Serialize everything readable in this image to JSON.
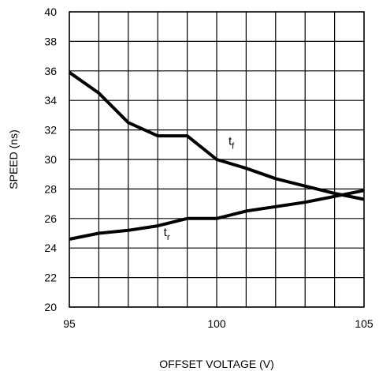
{
  "chart_data": {
    "type": "line",
    "title": "",
    "xlabel": "OFFSET VOLTAGE (V)",
    "ylabel": "SPEED (ns)",
    "xlim": [
      95,
      105
    ],
    "ylim": [
      20,
      40
    ],
    "x_ticks": [
      95,
      100,
      105
    ],
    "y_ticks": [
      20,
      22,
      24,
      26,
      28,
      30,
      32,
      34,
      36,
      38,
      40
    ],
    "x_grid_step": 1,
    "grid": true,
    "series": [
      {
        "name": "tf",
        "label_main": "t",
        "label_sub": "f",
        "x": [
          95,
          96,
          97,
          98,
          99,
          100,
          101,
          102,
          103,
          104,
          105
        ],
        "y": [
          35.9,
          34.5,
          32.5,
          31.6,
          31.6,
          30.0,
          29.4,
          28.7,
          28.2,
          27.7,
          27.3
        ]
      },
      {
        "name": "tr",
        "label_main": "t",
        "label_sub": "r",
        "x": [
          95,
          96,
          97,
          98,
          99,
          100,
          101,
          102,
          103,
          104,
          105
        ],
        "y": [
          24.6,
          25.0,
          25.2,
          25.5,
          26.0,
          26.0,
          26.5,
          26.8,
          27.1,
          27.5,
          27.9
        ]
      }
    ]
  }
}
